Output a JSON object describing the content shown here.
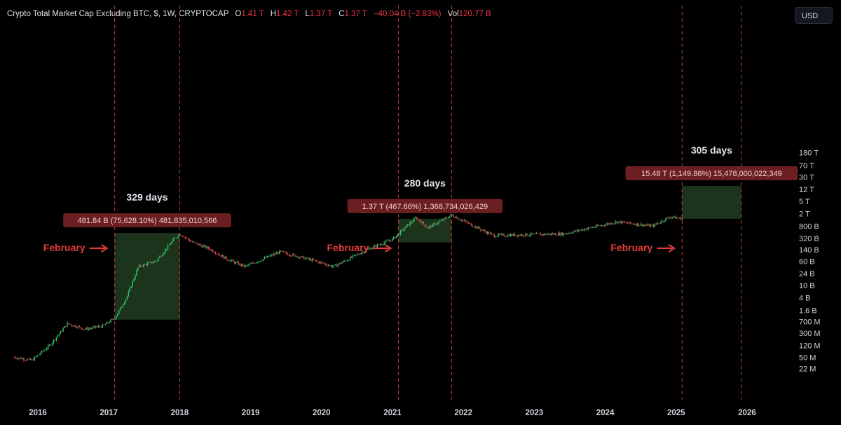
{
  "header": {
    "title": "Crypto Total Market Cap Excluding BTC, $, 1W, CRYPTOCAP",
    "open_label": "O",
    "open": "1.41 T",
    "high_label": "H",
    "high": "1.42 T",
    "low_label": "L",
    "low": "1.37 T",
    "close_label": "C",
    "close": "1.37 T",
    "change": "−40.04 B (−2.83%)",
    "vol_label": "Vol",
    "vol": "120.77 B"
  },
  "currency_button": "USD",
  "colors": {
    "up": "#2ecc71",
    "down": "#e0464f",
    "range_box": "#1e3a1e",
    "marker": "#e04a4a",
    "label_bg": "#6b1f23",
    "annotation": "#e23b3b"
  },
  "chart_data": {
    "type": "candlestick",
    "title": "Crypto Total Market Cap Excluding BTC, $, 1W, CRYPTOCAP",
    "xlabel": "",
    "ylabel": "",
    "y_scale": "log",
    "x_ticks": [
      "2016",
      "2017",
      "2018",
      "2019",
      "2020",
      "2021",
      "2022",
      "2023",
      "2024",
      "2025",
      "2026"
    ],
    "y_ticks": [
      "22 M",
      "50 M",
      "120 M",
      "300 M",
      "700 M",
      "1.6 B",
      "4 B",
      "10 B",
      "24 B",
      "60 B",
      "140 B",
      "320 B",
      "800 B",
      "2 T",
      "5 T",
      "12 T",
      "30 T",
      "70 T",
      "180 T"
    ],
    "series_approx_close": [
      {
        "date": "2015-09",
        "value": 50000000
      },
      {
        "date": "2015-12",
        "value": 40000000
      },
      {
        "date": "2016-03",
        "value": 120000000
      },
      {
        "date": "2016-06",
        "value": 600000000
      },
      {
        "date": "2016-09",
        "value": 400000000
      },
      {
        "date": "2016-12",
        "value": 500000000
      },
      {
        "date": "2017-02",
        "value": 900000000
      },
      {
        "date": "2017-04",
        "value": 4000000000
      },
      {
        "date": "2017-06",
        "value": 40000000000
      },
      {
        "date": "2017-09",
        "value": 60000000000
      },
      {
        "date": "2017-12",
        "value": 300000000000
      },
      {
        "date": "2018-01",
        "value": 450000000000
      },
      {
        "date": "2018-03",
        "value": 250000000000
      },
      {
        "date": "2018-06",
        "value": 150000000000
      },
      {
        "date": "2018-09",
        "value": 70000000000
      },
      {
        "date": "2018-12",
        "value": 40000000000
      },
      {
        "date": "2019-06",
        "value": 120000000000
      },
      {
        "date": "2019-12",
        "value": 60000000000
      },
      {
        "date": "2020-03",
        "value": 40000000000
      },
      {
        "date": "2020-09",
        "value": 150000000000
      },
      {
        "date": "2021-01",
        "value": 300000000000
      },
      {
        "date": "2021-05",
        "value": 1500000000000
      },
      {
        "date": "2021-07",
        "value": 700000000000
      },
      {
        "date": "2021-11",
        "value": 1800000000000
      },
      {
        "date": "2022-06",
        "value": 400000000000
      },
      {
        "date": "2023-06",
        "value": 450000000000
      },
      {
        "date": "2024-03",
        "value": 1100000000000
      },
      {
        "date": "2024-09",
        "value": 800000000000
      },
      {
        "date": "2024-12",
        "value": 1600000000000
      },
      {
        "date": "2025-02",
        "value": 1370000000000
      }
    ],
    "markers": [
      {
        "date": "2017-02",
        "label": "February"
      },
      {
        "date": "2018-01"
      },
      {
        "date": "2021-02",
        "label": "February"
      },
      {
        "date": "2021-11"
      },
      {
        "date": "2025-02",
        "label": "February"
      },
      {
        "date": "2025-12"
      }
    ],
    "ranges": [
      {
        "start": "2017-02",
        "end": "2018-01",
        "low": 800000000,
        "high": 480000000000,
        "duration": "329 days",
        "measure": "481.84 B (75,628.10%) 481,835,010,566"
      },
      {
        "start": "2021-02",
        "end": "2021-11",
        "low": 240000000000,
        "high": 1370000000000,
        "duration": "280 days",
        "measure": "1.37 T (467.66%) 1,368,734,026,429"
      },
      {
        "start": "2025-02",
        "end": "2025-12",
        "low": 1370000000000,
        "high": 15480000000000,
        "duration": "305 days",
        "measure": "15.48 T (1,149.86%) 15,478,000,022,349"
      }
    ]
  }
}
